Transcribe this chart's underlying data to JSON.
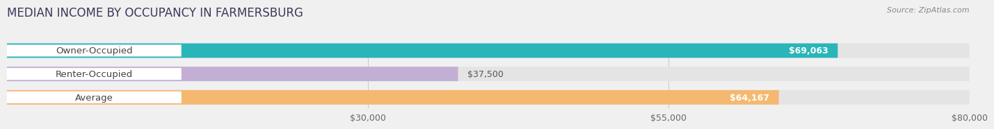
{
  "title": "MEDIAN INCOME BY OCCUPANCY IN FARMERSBURG",
  "source": "Source: ZipAtlas.com",
  "categories": [
    "Owner-Occupied",
    "Renter-Occupied",
    "Average"
  ],
  "values": [
    69063,
    37500,
    64167
  ],
  "bar_colors": [
    "#2ab5b8",
    "#c4afd4",
    "#f5b870"
  ],
  "bar_labels": [
    "$69,063",
    "$37,500",
    "$64,167"
  ],
  "label_inside": [
    true,
    false,
    true
  ],
  "xlim": [
    0,
    80000
  ],
  "xticks": [
    30000,
    55000,
    80000
  ],
  "xticklabels": [
    "$30,000",
    "$55,000",
    "$80,000"
  ],
  "background_color": "#f0f0f0",
  "bar_bg_color": "#e4e4e4",
  "title_color": "#3a3a5c",
  "source_color": "#888888",
  "cat_text_color": "#444444",
  "value_text_color_inside": "#ffffff",
  "value_text_color_outside": "#555555",
  "title_fontsize": 12,
  "tick_fontsize": 9,
  "label_fontsize": 9,
  "cat_fontsize": 9.5
}
